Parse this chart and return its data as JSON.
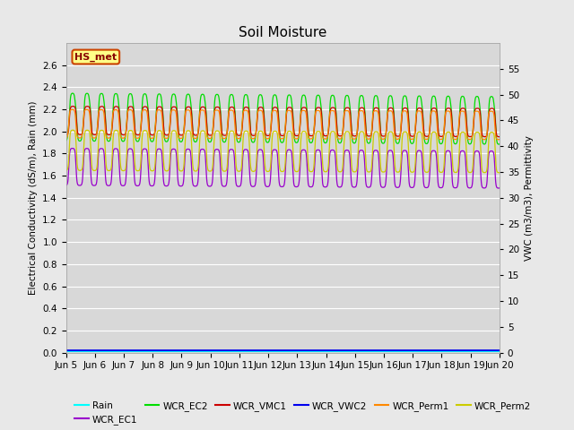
{
  "title": "Soil Moisture",
  "ylabel_left": "Electrical Conductivity (dS/m), Rain (mm)",
  "ylabel_right": "VWC (m3/m3), Permittivity",
  "ylim_left": [
    0.0,
    2.8
  ],
  "ylim_right": [
    0,
    60
  ],
  "yticks_left": [
    0.0,
    0.2,
    0.4,
    0.6,
    0.8,
    1.0,
    1.2,
    1.4,
    1.6,
    1.8,
    2.0,
    2.2,
    2.4,
    2.6
  ],
  "yticks_right": [
    0,
    5,
    10,
    15,
    20,
    25,
    30,
    35,
    40,
    45,
    50,
    55
  ],
  "xtick_labels": [
    "Jun 5",
    "Jun 6",
    "Jun 7",
    "Jun 8",
    "Jun 9",
    "Jun 10",
    "Jun 11",
    "Jun 12",
    "Jun 13",
    "Jun 14",
    "Jun 15",
    "Jun 16",
    "Jun 17",
    "Jun 18",
    "Jun 19",
    "Jun 20"
  ],
  "station_label": "HS_met",
  "colors": {
    "Rain": "#00ffff",
    "WCR_EC1": "#9900cc",
    "WCR_EC2": "#00dd00",
    "WCR_VMC1": "#cc0000",
    "WCR_VWC2": "#0000ee",
    "WCR_Perm1": "#ff8800",
    "WCR_Perm2": "#cccc00"
  },
  "bg_color": "#e8e8e8",
  "plot_bg_color": "#d8d8d8",
  "grid_color": "#ffffff",
  "n_days": 15,
  "pts_per_day": 96,
  "ec2_base": 2.13,
  "ec2_drift": -0.03,
  "ec2_amp1": 0.16,
  "ec2_amp2": 0.06,
  "vmc1_base": 2.1,
  "vmc1_drift": -0.02,
  "vmc1_amp": 0.13,
  "ec1_base": 1.68,
  "ec1_drift": -0.025,
  "ec1_amp": 0.17,
  "perm1_base": 2.07,
  "perm1_drift": -0.015,
  "perm1_amp": 0.13,
  "perm2_base": 1.83,
  "perm2_drift": -0.02,
  "perm2_amp": 0.185
}
